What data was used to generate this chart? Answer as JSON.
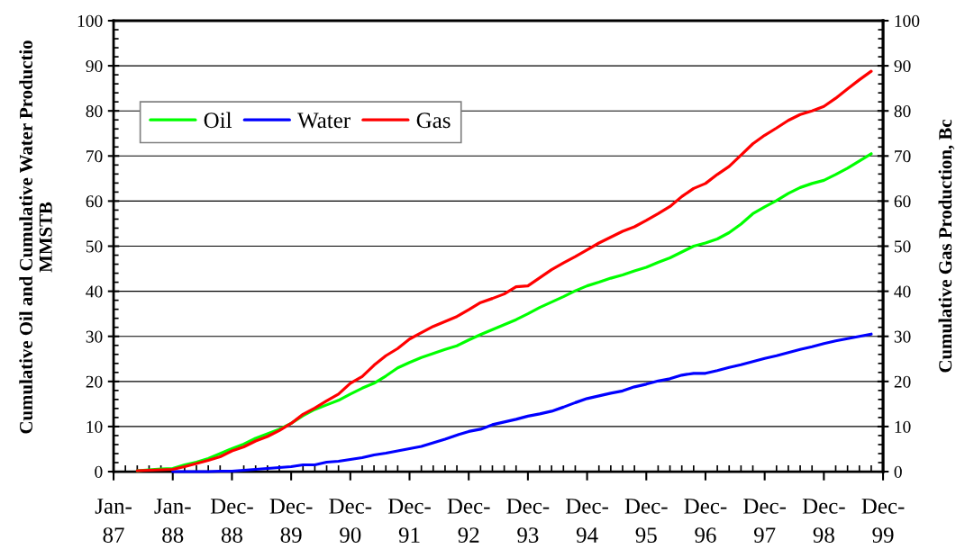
{
  "chart_data": {
    "type": "line",
    "categories": [
      "Jan-87",
      null,
      null,
      null,
      null,
      "Jan-88",
      null,
      null,
      null,
      null,
      "Dec-88",
      null,
      null,
      null,
      null,
      "Dec-89",
      null,
      null,
      null,
      null,
      "Dec-90",
      null,
      null,
      null,
      null,
      "Dec-91",
      null,
      null,
      null,
      null,
      "Dec-92",
      null,
      null,
      null,
      null,
      "Dec-93",
      null,
      null,
      null,
      null,
      "Dec-94",
      null,
      null,
      null,
      null,
      "Dec-95",
      null,
      null,
      null,
      null,
      "Dec-96",
      null,
      null,
      null,
      null,
      "Dec-97",
      null,
      null,
      null,
      null,
      "Dec-98",
      null,
      null,
      null,
      null,
      "Dec-99"
    ],
    "series": [
      {
        "name": "Oil",
        "color": "#00ff00",
        "values": [
          null,
          null,
          0.2,
          0.4,
          0.6,
          0.7,
          1.5,
          2.1,
          2.9,
          4.0,
          5.1,
          6.1,
          7.4,
          8.4,
          9.4,
          10.7,
          12.4,
          13.8,
          14.8,
          15.8,
          17.2,
          18.5,
          19.6,
          21.2,
          23.0,
          24.2,
          25.3,
          26.2,
          27.1,
          27.9,
          29.2,
          30.4,
          31.5,
          32.6,
          33.7,
          35.0,
          36.4,
          37.6,
          38.8,
          40.1,
          41.2,
          42.0,
          42.9,
          43.6,
          44.5,
          45.3,
          46.4,
          47.4,
          48.7,
          50.0,
          50.7,
          51.6,
          53.0,
          54.9,
          57.2,
          58.7,
          60.1,
          61.7,
          63.0,
          63.9,
          64.6,
          65.9,
          67.3,
          68.9,
          70.5,
          null
        ]
      },
      {
        "name": "Water",
        "color": "#0000ff",
        "values": [
          null,
          null,
          null,
          null,
          null,
          0,
          0,
          0,
          0,
          0.1,
          0.1,
          0.3,
          0.5,
          0.7,
          0.9,
          1.1,
          1.5,
          1.5,
          2.1,
          2.3,
          2.7,
          3.1,
          3.7,
          4.1,
          4.6,
          5.1,
          5.6,
          6.4,
          7.2,
          8.1,
          8.9,
          9.4,
          10.4,
          11.0,
          11.6,
          12.3,
          12.8,
          13.4,
          14.3,
          15.3,
          16.2,
          16.8,
          17.4,
          17.9,
          18.8,
          19.4,
          20.1,
          20.6,
          21.4,
          21.8,
          21.8,
          22.4,
          23.1,
          23.7,
          24.4,
          25.1,
          25.7,
          26.4,
          27.1,
          27.7,
          28.4,
          29.0,
          29.5,
          30.0,
          30.5,
          null
        ]
      },
      {
        "name": "Gas",
        "color": "#ff0000",
        "axis": "y2",
        "values": [
          null,
          null,
          0.2,
          0.3,
          0.4,
          0.5,
          1.1,
          1.8,
          2.5,
          3.3,
          4.6,
          5.5,
          6.8,
          7.8,
          9.1,
          10.7,
          12.7,
          14.1,
          15.7,
          17.2,
          19.6,
          21.1,
          23.6,
          25.7,
          27.3,
          29.4,
          30.8,
          32.2,
          33.3,
          34.4,
          35.9,
          37.5,
          38.4,
          39.4,
          41.0,
          41.2,
          43.0,
          44.8,
          46.3,
          47.7,
          49.2,
          50.7,
          52.0,
          53.3,
          54.3,
          55.7,
          57.2,
          58.8,
          61.0,
          62.8,
          63.9,
          65.9,
          67.7,
          70.2,
          72.7,
          74.6,
          76.2,
          77.9,
          79.2,
          80.0,
          81.0,
          82.8,
          84.9,
          86.9,
          88.8,
          null
        ]
      }
    ],
    "ylabel": "Cumulative Oil and Cumulative Water Productio\nMMSTB",
    "y2label": "Cumulative Gas Production, Bc",
    "ylim": [
      0,
      100
    ],
    "yticks": [
      0,
      10,
      20,
      30,
      40,
      50,
      60,
      70,
      80,
      90,
      100
    ],
    "y2lim": [
      0,
      100
    ],
    "y2ticks": [
      0,
      10,
      20,
      30,
      40,
      50,
      60,
      70,
      80,
      90,
      100
    ],
    "grid": "y",
    "legend": "top left",
    "line_style": "solid"
  }
}
